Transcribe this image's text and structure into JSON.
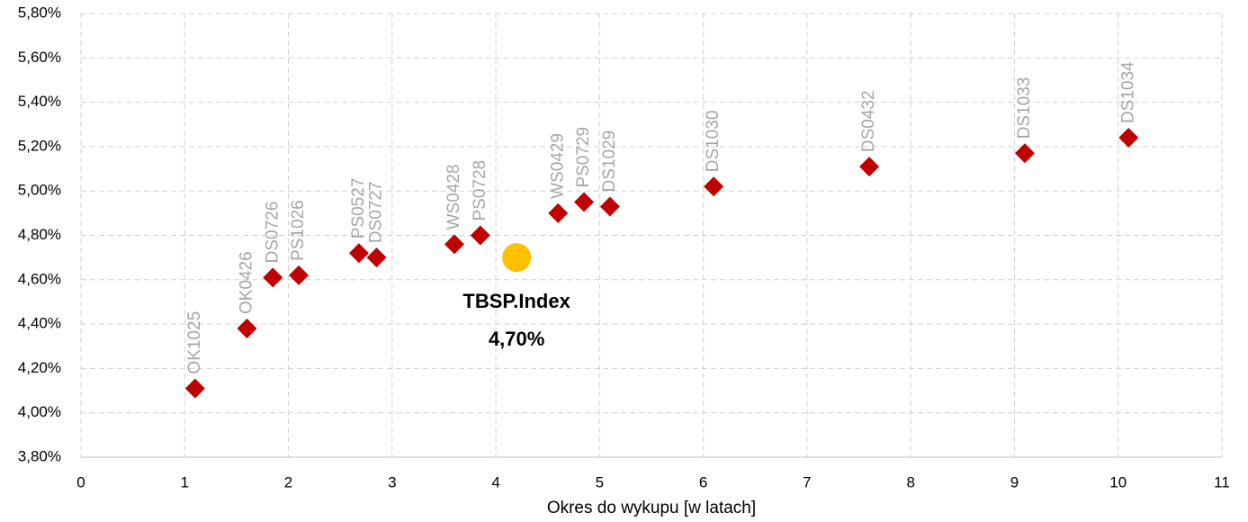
{
  "chart_data": {
    "type": "scatter",
    "xlabel": "Okres do wykupu [w latach]",
    "xlim": [
      0,
      11
    ],
    "xticks": [
      0,
      1,
      2,
      3,
      4,
      5,
      6,
      7,
      8,
      9,
      10,
      11
    ],
    "ylim": [
      3.8,
      5.8
    ],
    "yticks": [
      {
        "value": 3.8,
        "label": "3,80%"
      },
      {
        "value": 4.0,
        "label": "4,00%"
      },
      {
        "value": 4.2,
        "label": "4,20%"
      },
      {
        "value": 4.4,
        "label": "4,40%"
      },
      {
        "value": 4.6,
        "label": "4,60%"
      },
      {
        "value": 4.8,
        "label": "4,80%"
      },
      {
        "value": 5.0,
        "label": "5,00%"
      },
      {
        "value": 5.2,
        "label": "5,20%"
      },
      {
        "value": 5.4,
        "label": "5,40%"
      },
      {
        "value": 5.6,
        "label": "5,60%"
      },
      {
        "value": 5.8,
        "label": "5,80%"
      }
    ],
    "grid": true,
    "series": [
      {
        "color": "#c00000",
        "marker": "diamond",
        "labels": [
          "OK1025",
          "OK0426",
          "DS0726",
          "PS1026",
          "PS0527",
          "DS0727",
          "WS0428",
          "PS0728",
          "WS0429",
          "PS0729",
          "DS1029",
          "DS1030",
          "DS0432",
          "DS1033",
          "DS1034"
        ],
        "x": [
          1.1,
          1.6,
          1.85,
          2.1,
          2.68,
          2.85,
          3.6,
          3.85,
          4.6,
          4.85,
          5.1,
          6.1,
          7.6,
          9.1,
          10.1
        ],
        "values": [
          4.11,
          4.38,
          4.61,
          4.62,
          4.72,
          4.7,
          4.76,
          4.8,
          4.9,
          4.95,
          4.93,
          5.02,
          5.11,
          5.17,
          5.24
        ]
      },
      {
        "name": "TBSP.Index",
        "color": "#ffc000",
        "marker": "circle",
        "x": [
          4.2
        ],
        "values": [
          4.7
        ],
        "value_labels": [
          "4,70%"
        ]
      }
    ]
  }
}
